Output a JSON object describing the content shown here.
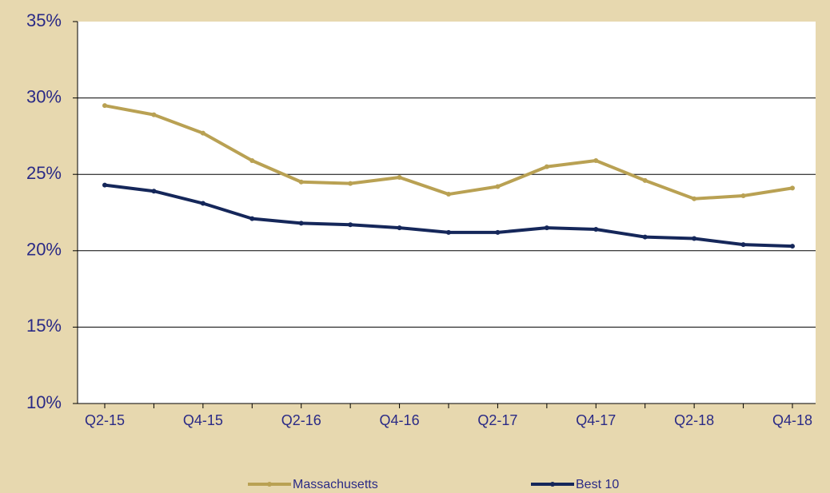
{
  "chart_data": {
    "type": "line",
    "categories": [
      "Q2-15",
      null,
      "Q4-15",
      null,
      "Q2-16",
      null,
      "Q4-16",
      null,
      "Q2-17",
      null,
      "Q4-17",
      null,
      "Q2-18",
      null,
      "Q4-18"
    ],
    "series": [
      {
        "name": "Massachusetts",
        "color": "#b9a153",
        "values": [
          29.5,
          28.9,
          27.7,
          25.9,
          24.5,
          24.4,
          24.8,
          23.7,
          24.2,
          25.5,
          25.9,
          24.6,
          23.4,
          23.6,
          24.1
        ]
      },
      {
        "name": "Best 10",
        "color": "#15275a",
        "values": [
          24.3,
          23.9,
          23.1,
          22.1,
          21.8,
          21.7,
          21.5,
          21.2,
          21.2,
          21.5,
          21.4,
          20.9,
          20.8,
          20.4,
          20.3
        ]
      }
    ],
    "ylim": [
      10,
      35
    ],
    "yticks": [
      {
        "value": 10,
        "label": "10%"
      },
      {
        "value": 15,
        "label": "15%"
      },
      {
        "value": 20,
        "label": "20%"
      },
      {
        "value": 25,
        "label": "25%"
      },
      {
        "value": 30,
        "label": "30%"
      },
      {
        "value": 35,
        "label": "35%"
      }
    ],
    "grid": true,
    "legend": "bottom"
  }
}
